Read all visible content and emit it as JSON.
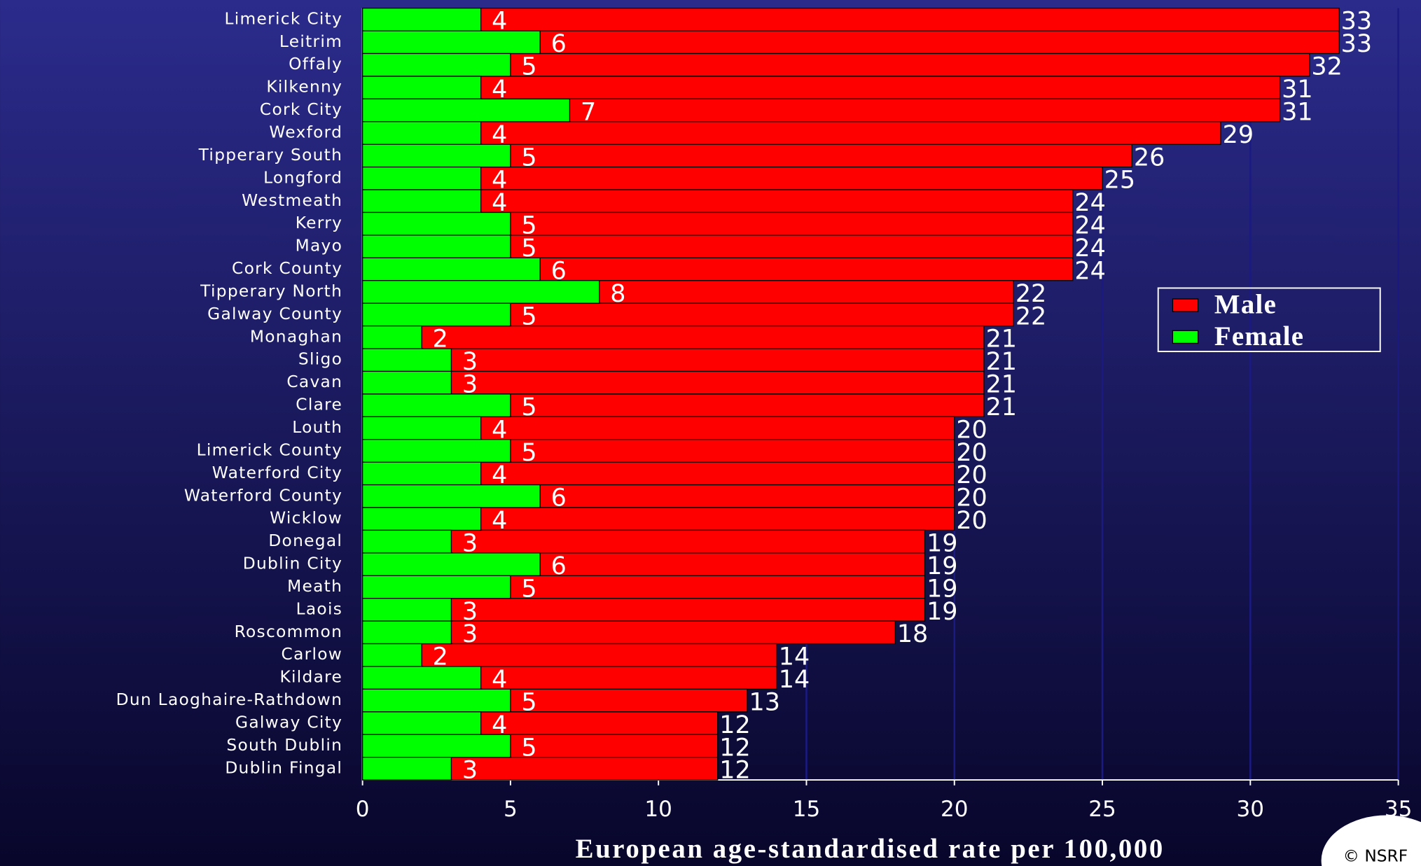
{
  "chart_data": {
    "type": "bar",
    "orientation": "horizontal",
    "categories": [
      "Limerick City",
      "Leitrim",
      "Offaly",
      "Kilkenny",
      "Cork City",
      "Wexford",
      "Tipperary South",
      "Longford",
      "Westmeath",
      "Kerry",
      "Mayo",
      "Cork County",
      "Tipperary North",
      "Galway County",
      "Monaghan",
      "Sligo",
      "Cavan",
      "Clare",
      "Louth",
      "Limerick County",
      "Waterford City",
      "Waterford County",
      "Wicklow",
      "Donegal",
      "Dublin City",
      "Meath",
      "Laois",
      "Roscommon",
      "Carlow",
      "Kildare",
      "Dun Laoghaire-Rathdown",
      "Galway City",
      "South Dublin",
      "Dublin Fingal"
    ],
    "series": [
      {
        "name": "Male",
        "color": "#ff0000",
        "values": [
          33,
          33,
          32,
          31,
          31,
          29,
          26,
          25,
          24,
          24,
          24,
          24,
          22,
          22,
          21,
          21,
          21,
          21,
          20,
          20,
          20,
          20,
          20,
          19,
          19,
          19,
          19,
          18,
          14,
          14,
          13,
          12,
          12,
          12
        ]
      },
      {
        "name": "Female",
        "color": "#00ff00",
        "values": [
          4,
          6,
          5,
          4,
          7,
          4,
          5,
          4,
          4,
          5,
          5,
          6,
          8,
          5,
          2,
          3,
          3,
          5,
          4,
          5,
          4,
          6,
          4,
          3,
          6,
          5,
          3,
          3,
          2,
          4,
          5,
          4,
          5,
          3
        ]
      }
    ],
    "xlabel": "European age-standardised rate per 100,000",
    "xlim": [
      0,
      35
    ],
    "xticks": [
      0,
      5,
      10,
      15,
      20,
      25,
      30,
      35
    ],
    "grid": true,
    "legend": "upper right",
    "watermark": "© NSRF"
  }
}
